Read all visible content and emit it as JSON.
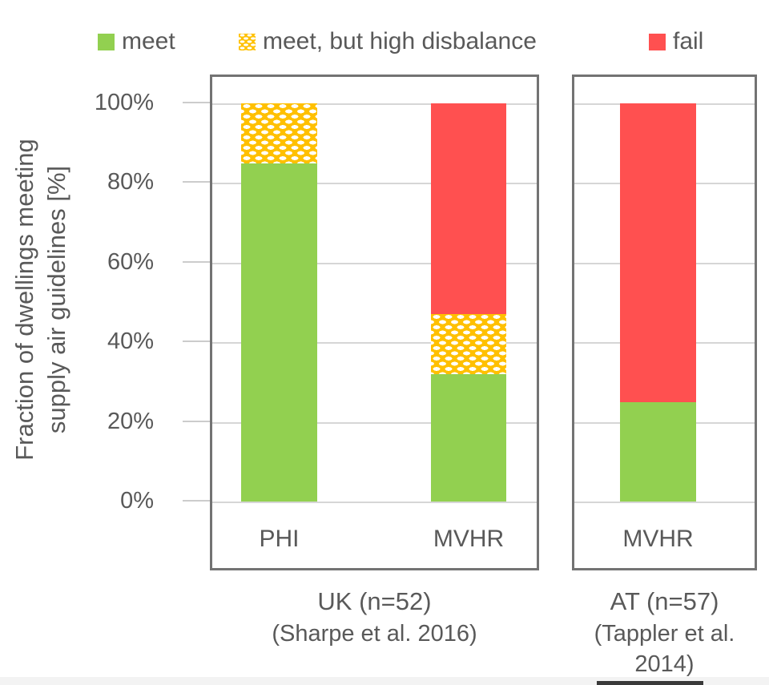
{
  "legend": {
    "items": [
      {
        "key": "meet",
        "label": "meet",
        "color": "#92d050",
        "pattern": "solid"
      },
      {
        "key": "disbalance",
        "label": "meet, but high disbalance",
        "color": "#ffc000",
        "pattern": "white-dots"
      },
      {
        "key": "fail",
        "label": "fail",
        "color": "#ff5050",
        "pattern": "solid"
      }
    ]
  },
  "y_axis": {
    "title_line1": "Fraction of dwellings meeting",
    "title_line2": "supply air guidelines [%]",
    "ticks": [
      "100%",
      "80%",
      "60%",
      "40%",
      "20%",
      "0%"
    ]
  },
  "panels": [
    {
      "name": "uk",
      "categories": [
        "PHI",
        "MVHR"
      ],
      "caption_line1": "UK (n=52)",
      "caption_line2": "(Sharpe et al.  2016)"
    },
    {
      "name": "at",
      "categories": [
        "MVHR"
      ],
      "caption_line1": "AT (n=57)",
      "caption_line2": "(Tappler et al.",
      "caption_line3": "2014)"
    }
  ],
  "colors": {
    "meet": "#92d050",
    "meet_but_high_disbalance": "#ffc000",
    "fail": "#ff5050",
    "text": "#595959",
    "gridline": "#d6d6d6",
    "panel_border": "#737373"
  },
  "chart_data": {
    "type": "bar",
    "subtype": "stacked-percentage",
    "ylabel": "Fraction of dwellings meeting supply air guidelines [%]",
    "ylim": [
      0,
      100
    ],
    "ytick_values": [
      0,
      20,
      40,
      60,
      80,
      100
    ],
    "grid": "horizontal",
    "legend_position": "top",
    "series": [
      "meet",
      "meet, but high disbalance",
      "fail"
    ],
    "groups": [
      {
        "group_label": "UK (n=52)",
        "source": "(Sharpe et al. 2016)",
        "bars": [
          {
            "category": "PHI",
            "segments": [
              {
                "key": "meet",
                "label": "meet",
                "value": 85
              },
              {
                "key": "disbalance",
                "label": "meet, but high disbalance",
                "value": 15
              },
              {
                "key": "fail",
                "label": "fail",
                "value": 0
              }
            ]
          },
          {
            "category": "MVHR",
            "segments": [
              {
                "key": "meet",
                "label": "meet",
                "value": 32
              },
              {
                "key": "disbalance",
                "label": "meet, but high disbalance",
                "value": 15
              },
              {
                "key": "fail",
                "label": "fail",
                "value": 53
              }
            ]
          }
        ]
      },
      {
        "group_label": "AT (n=57)",
        "source": "(Tappler et al. 2014)",
        "bars": [
          {
            "category": "MVHR",
            "segments": [
              {
                "key": "meet",
                "label": "meet",
                "value": 25
              },
              {
                "key": "disbalance",
                "label": "meet, but high disbalance",
                "value": 0
              },
              {
                "key": "fail",
                "label": "fail",
                "value": 75
              }
            ]
          }
        ]
      }
    ]
  }
}
